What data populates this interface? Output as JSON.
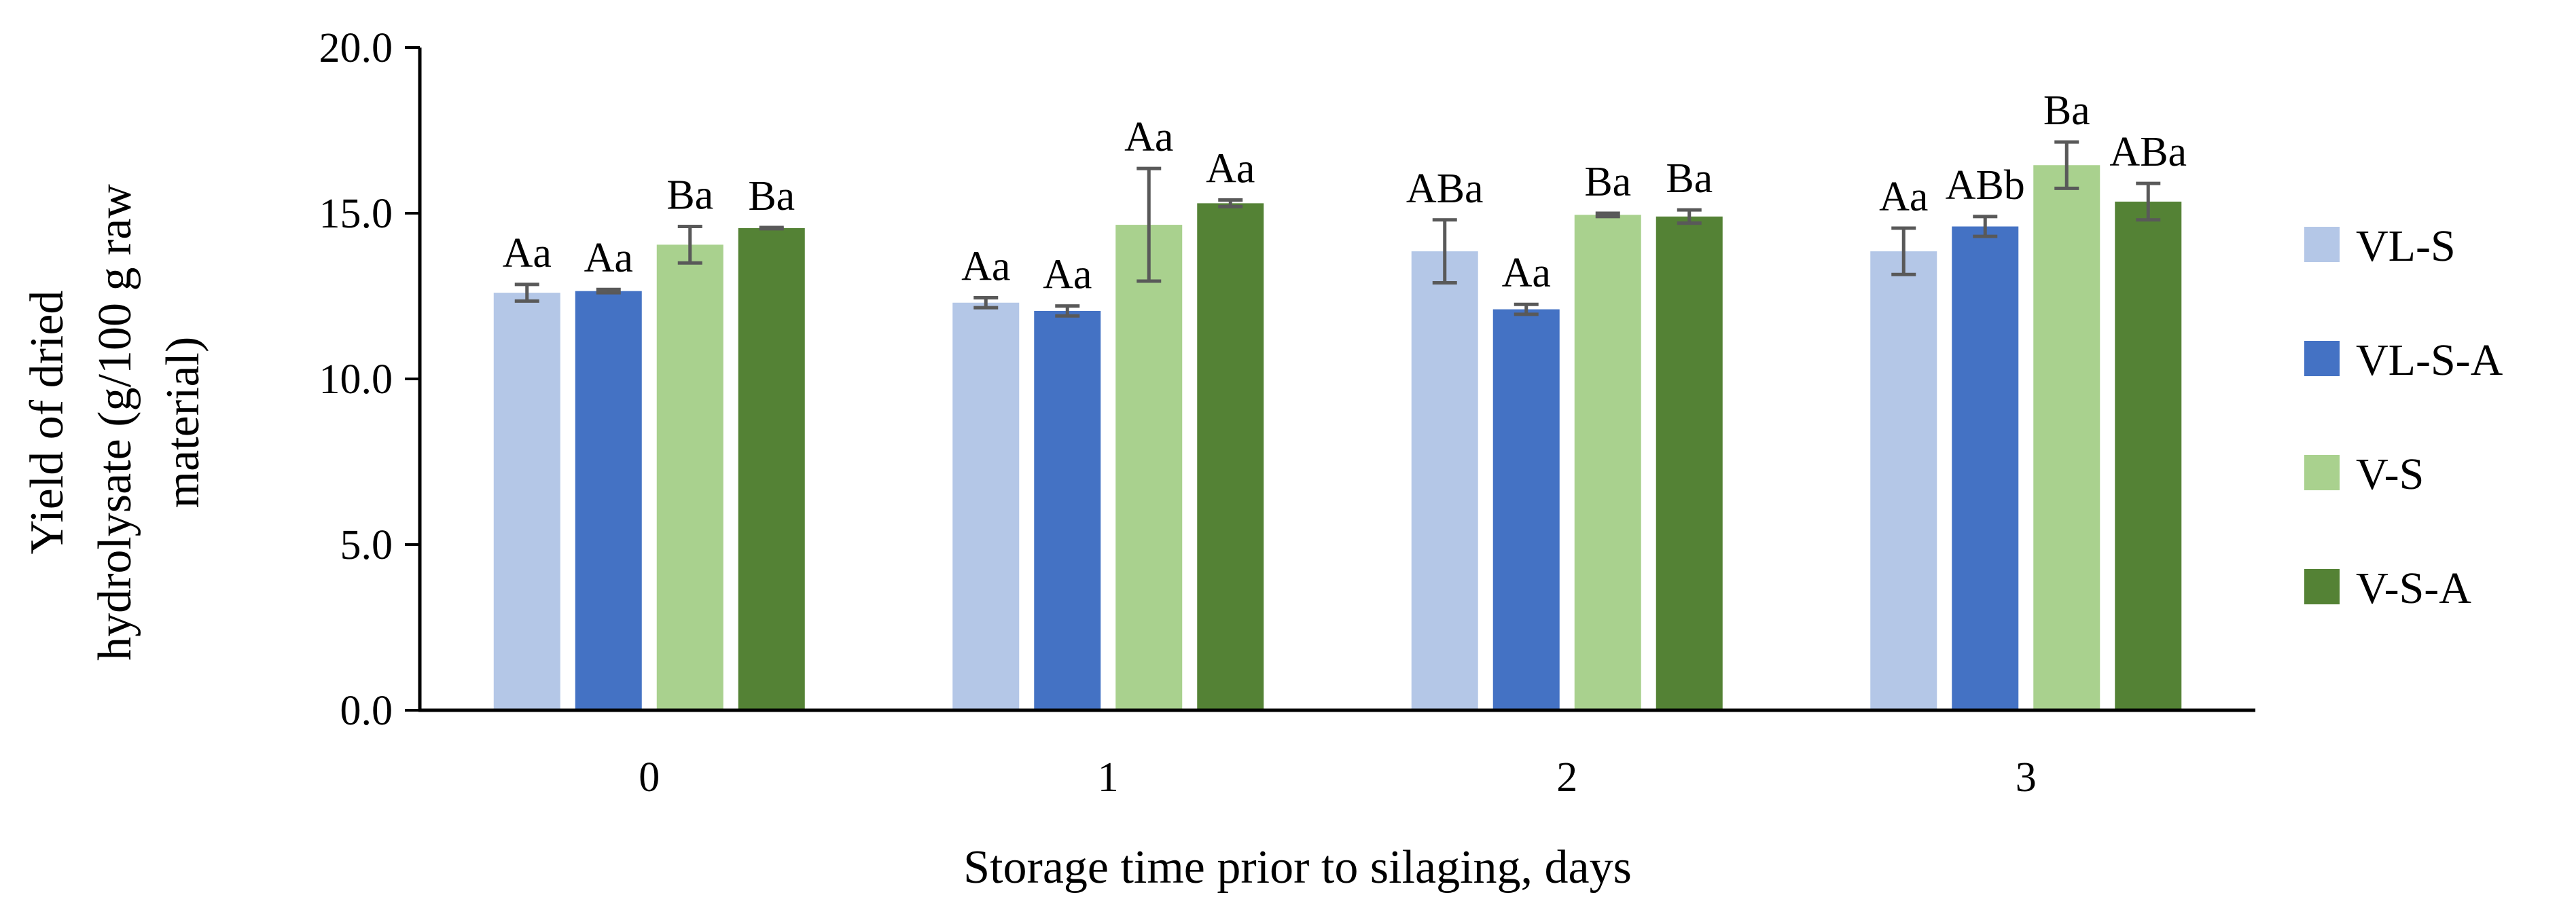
{
  "chart_data": {
    "type": "bar",
    "title": "",
    "xlabel": "Storage time prior to silaging, days",
    "ylabel": [
      "Yield of dried",
      "hydrolysate (g/100 g raw",
      "material)"
    ],
    "categories": [
      "0",
      "1",
      "2",
      "3"
    ],
    "ylim": [
      0,
      20
    ],
    "yticks": [
      "0.0",
      "5.0",
      "10.0",
      "15.0",
      "20.0"
    ],
    "grid": false,
    "legend_position": "right",
    "series": [
      {
        "name": "VL-S",
        "color": "#b4c7e7",
        "values": [
          12.6,
          12.3,
          13.85,
          13.85
        ],
        "errors": [
          0.25,
          0.15,
          0.95,
          0.7
        ],
        "labels": [
          "Aa",
          "Aa",
          "ABa",
          "Aa"
        ]
      },
      {
        "name": "VL-S-A",
        "color": "#4472c4",
        "values": [
          12.65,
          12.05,
          12.1,
          14.6
        ],
        "errors": [
          0.05,
          0.15,
          0.15,
          0.3
        ],
        "labels": [
          "Aa",
          "Aa",
          "Aa",
          "ABb"
        ]
      },
      {
        "name": "V-S",
        "color": "#a9d18e",
        "values": [
          14.05,
          14.65,
          14.95,
          16.45
        ],
        "errors": [
          0.55,
          1.7,
          0.05,
          0.7
        ],
        "labels": [
          "Ba",
          "Aa",
          "Ba",
          "Ba"
        ]
      },
      {
        "name": "V-S-A",
        "color": "#548235",
        "values": [
          14.55,
          15.3,
          14.9,
          15.35
        ],
        "errors": [
          0.02,
          0.1,
          0.2,
          0.55
        ],
        "labels": [
          "Ba",
          "Aa",
          "Ba",
          "ABa"
        ]
      }
    ]
  }
}
